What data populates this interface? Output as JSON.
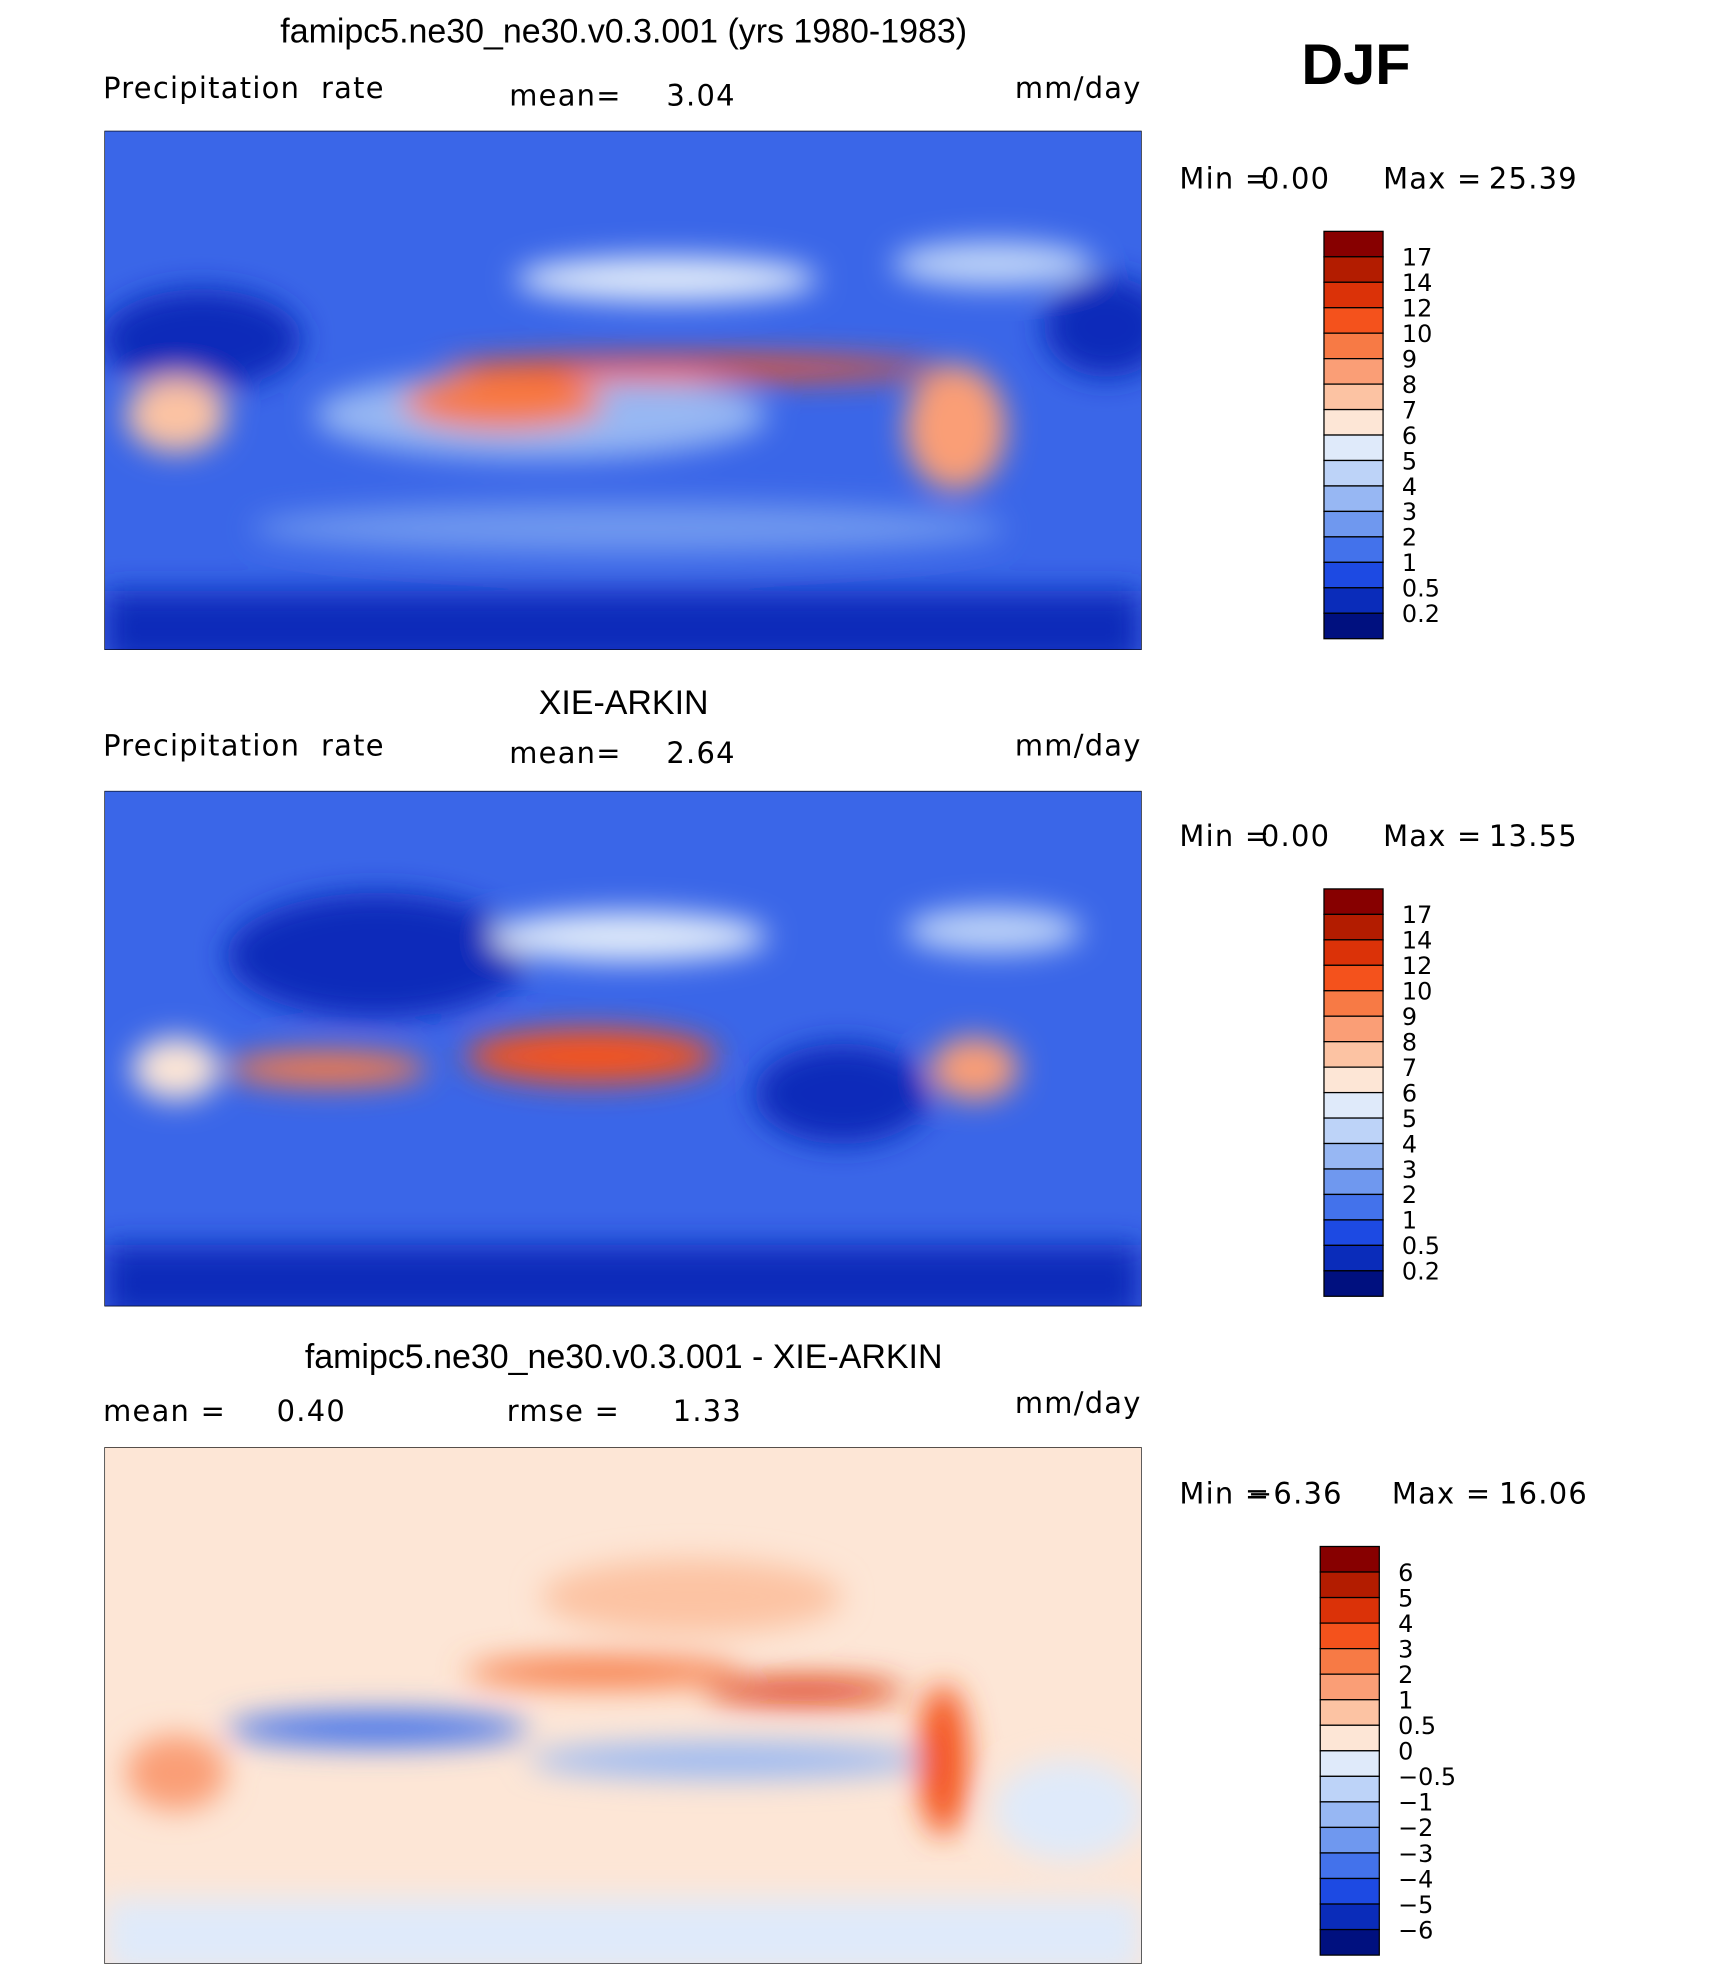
{
  "season": "DJF",
  "panels": [
    {
      "title": "famipc5.ne30_ne30.v0.3.001 (yrs 1980-1983)",
      "left_label": "Precipitation  rate",
      "stats": [
        {
          "label": "mean=",
          "value": "3.04"
        }
      ],
      "units": "mm/day",
      "min_label": "Min =",
      "min": "0.00",
      "max_label": "Max =",
      "max": "25.39",
      "colorbar": {
        "levels": [
          "17",
          "14",
          "12",
          "10",
          "9",
          "8",
          "7",
          "6",
          "5",
          "4",
          "3",
          "2",
          "1",
          "0.5",
          "0.2"
        ],
        "colors": [
          "#870000",
          "#b31c00",
          "#db3208",
          "#f4521c",
          "#f77a45",
          "#fa9e76",
          "#fcc3a3",
          "#fde6d6",
          "#dfeafa",
          "#bdd3f8",
          "#97b7f3",
          "#6f98ef",
          "#4372eb",
          "#1d4ae3",
          "#0a2cba",
          "#00107f"
        ]
      }
    },
    {
      "title": "XIE-ARKIN",
      "left_label": "Precipitation  rate",
      "stats": [
        {
          "label": "mean=",
          "value": "2.64"
        }
      ],
      "units": "mm/day",
      "min_label": "Min =",
      "min": "0.00",
      "max_label": "Max =",
      "max": "13.55",
      "colorbar": {
        "levels": [
          "17",
          "14",
          "12",
          "10",
          "9",
          "8",
          "7",
          "6",
          "5",
          "4",
          "3",
          "2",
          "1",
          "0.5",
          "0.2"
        ],
        "colors": [
          "#870000",
          "#b31c00",
          "#db3208",
          "#f4521c",
          "#f77a45",
          "#fa9e76",
          "#fcc3a3",
          "#fde6d6",
          "#dfeafa",
          "#bdd3f8",
          "#97b7f3",
          "#6f98ef",
          "#4372eb",
          "#1d4ae3",
          "#0a2cba",
          "#00107f"
        ]
      }
    },
    {
      "title": "famipc5.ne30_ne30.v0.3.001 - XIE-ARKIN",
      "left_label": null,
      "stats": [
        {
          "label": "mean =",
          "value": "0.40"
        },
        {
          "label": "rmse =",
          "value": "1.33"
        }
      ],
      "units": "mm/day",
      "min_label": "Min =",
      "min": "−6.36",
      "max_label": "Max =",
      "max": "16.06",
      "colorbar": {
        "levels": [
          "6",
          "5",
          "4",
          "3",
          "2",
          "1",
          "0.5",
          "0",
          "−0.5",
          "−1",
          "−2",
          "−3",
          "−4",
          "−5",
          "−6"
        ],
        "colors": [
          "#870000",
          "#b31c00",
          "#db3208",
          "#f4521c",
          "#f77a45",
          "#fa9e76",
          "#fcc3a3",
          "#fde6d6",
          "#dfeafa",
          "#bdd3f8",
          "#97b7f3",
          "#6f98ef",
          "#4372eb",
          "#1d4ae3",
          "#0a2cba",
          "#00107f"
        ]
      }
    }
  ]
}
